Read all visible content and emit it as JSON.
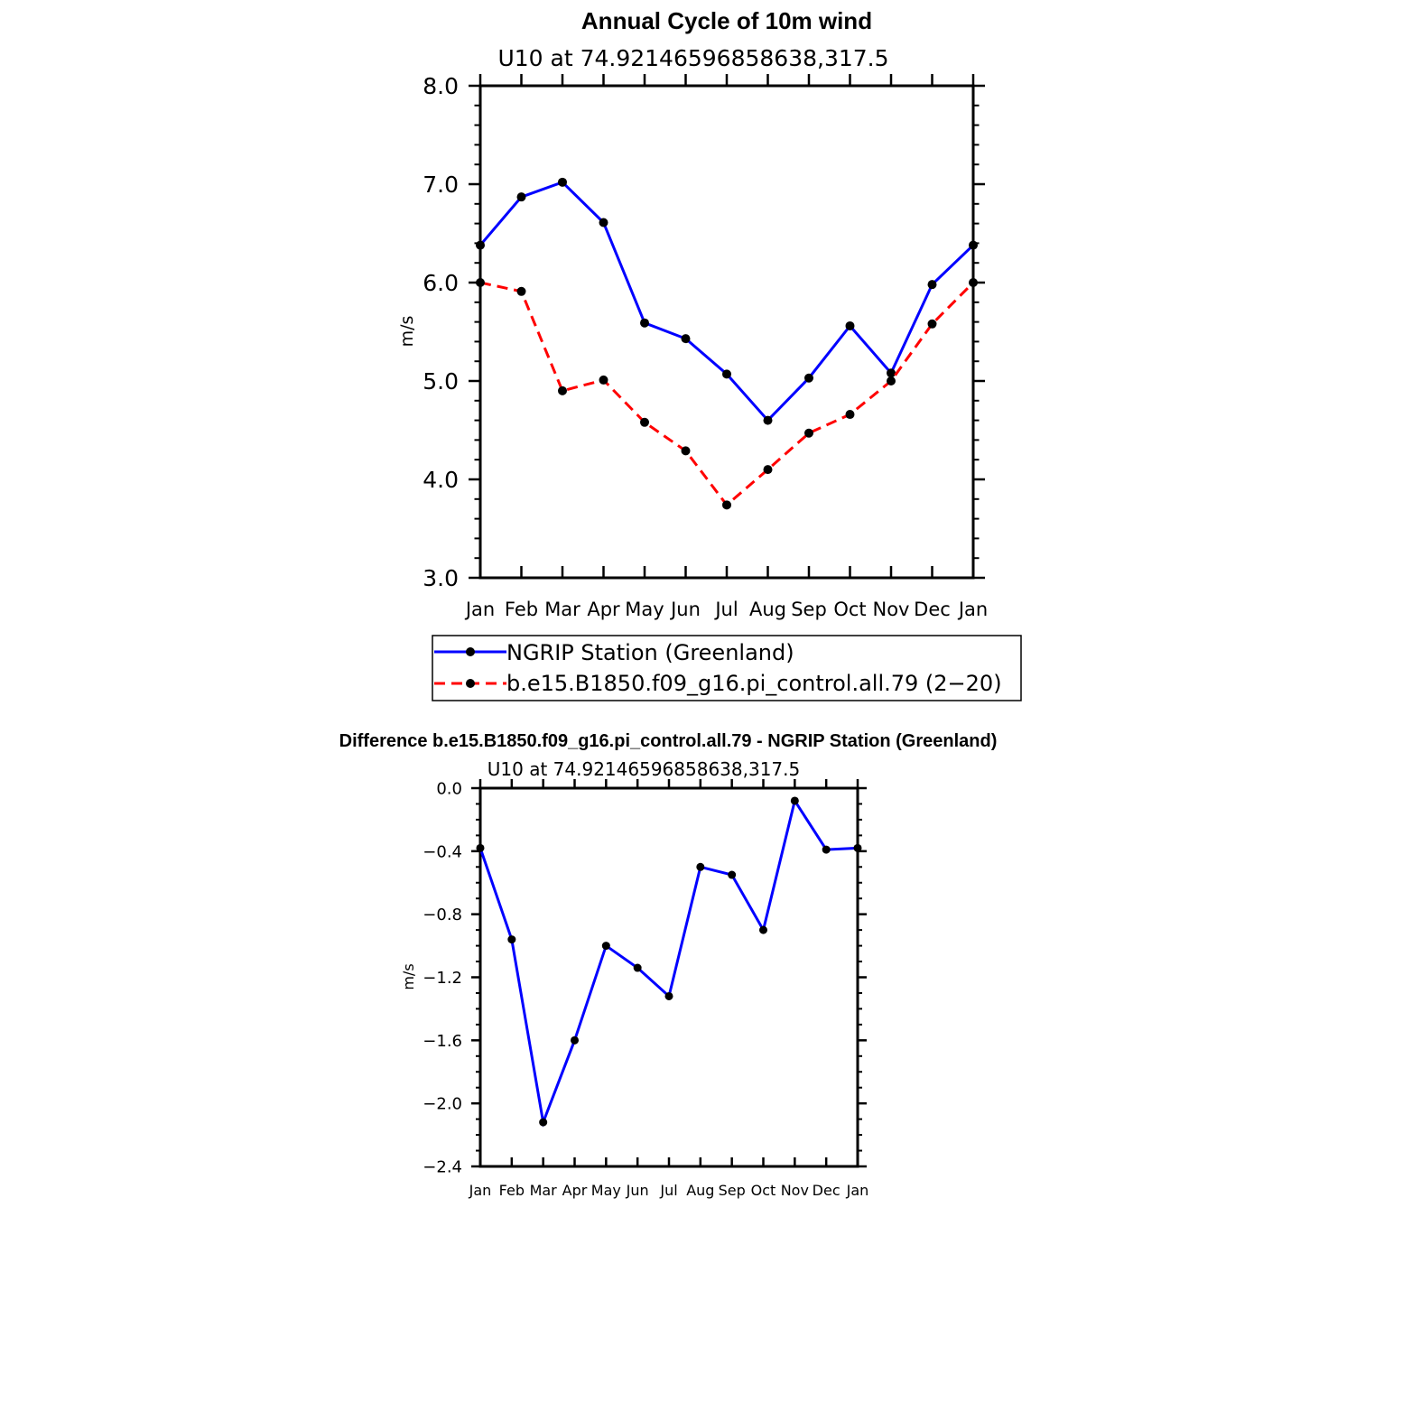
{
  "chart_data": [
    {
      "type": "line",
      "title": "Annual Cycle of 10m wind",
      "subtitle": "U10  at  74.92146596858638,317.5",
      "ylabel": "m/s",
      "xlabel": "",
      "categories": [
        "Jan",
        "Feb",
        "Mar",
        "Apr",
        "May",
        "Jun",
        "Jul",
        "Aug",
        "Sep",
        "Oct",
        "Nov",
        "Dec",
        "Jan"
      ],
      "ylim": [
        3.0,
        8.0
      ],
      "yticks": [
        "3.0",
        "4.0",
        "5.0",
        "6.0",
        "7.0",
        "8.0"
      ],
      "series": [
        {
          "name": "NGRIP Station (Greenland)",
          "color": "#0000ff",
          "dash": "solid",
          "values": [
            6.38,
            6.87,
            7.02,
            6.61,
            5.59,
            5.43,
            5.07,
            4.6,
            5.03,
            5.56,
            5.08,
            5.98,
            6.38
          ]
        },
        {
          "name": "b.e15.B1850.f09_g16.pi_control.all.79 (2−20)",
          "color": "#ff0000",
          "dash": "dashed",
          "values": [
            6.0,
            5.91,
            4.9,
            5.01,
            4.58,
            4.29,
            3.74,
            4.1,
            4.47,
            4.66,
            5.0,
            5.58,
            6.0
          ]
        }
      ],
      "legend_position": "below",
      "grid": false
    },
    {
      "type": "line",
      "title": "Difference b.e15.B1850.f09_g16.pi_control.all.79 - NGRIP Station (Greenland)",
      "subtitle": "U10  at  74.92146596858638,317.5",
      "ylabel": "m/s",
      "xlabel": "",
      "categories": [
        "Jan",
        "Feb",
        "Mar",
        "Apr",
        "May",
        "Jun",
        "Jul",
        "Aug",
        "Sep",
        "Oct",
        "Nov",
        "Dec",
        "Jan"
      ],
      "ylim": [
        -2.4,
        0.0
      ],
      "yticks": [
        "−2.4",
        "−2.0",
        "−1.6",
        "−1.2",
        "−0.8",
        "−0.4",
        "0.0"
      ],
      "series": [
        {
          "color": "#0000ff",
          "dash": "solid",
          "values": [
            -0.38,
            -0.96,
            -2.12,
            -1.6,
            -1.0,
            -1.14,
            -1.32,
            -0.5,
            -0.55,
            -0.9,
            -0.08,
            -0.39,
            -0.38
          ]
        }
      ],
      "grid": false
    }
  ]
}
